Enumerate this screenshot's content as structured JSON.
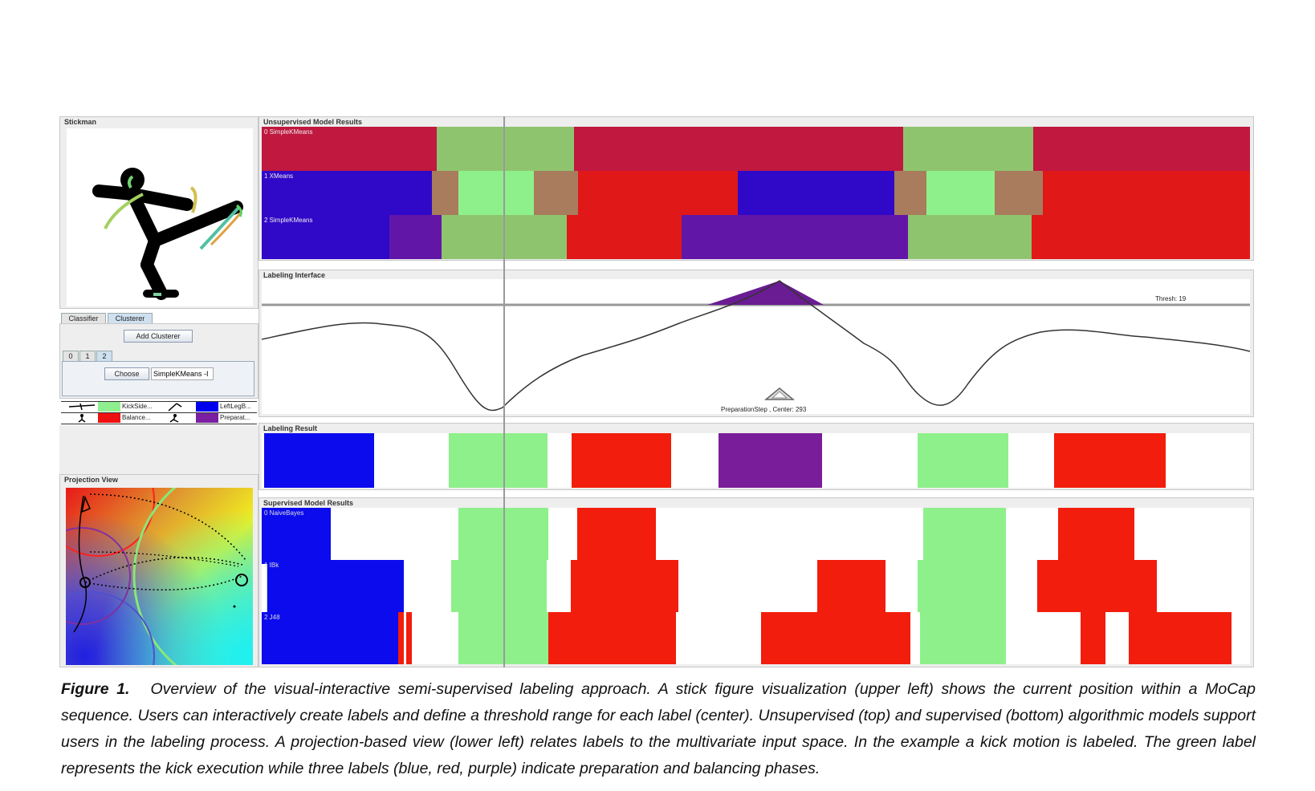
{
  "stickman": {
    "title": "Stickman"
  },
  "tabs": {
    "classifier": "Classifier",
    "clusterer": "Clusterer"
  },
  "add_clusterer": "Add Clusterer",
  "index_tabs": [
    "0",
    "1",
    "2"
  ],
  "choose_label": "Choose",
  "algorithm_field": "SimpleKMeans -I",
  "label_legend": [
    {
      "name": "KickSide...",
      "color": "#8fef8f"
    },
    {
      "name": "LeftLegB...",
      "color": "#0000ee"
    },
    {
      "name": "Balance...",
      "color": "#ee1111"
    },
    {
      "name": "Preparat...",
      "color": "#7a1fa0"
    }
  ],
  "projection": {
    "title": "Projection View"
  },
  "unsupervised": {
    "title": "Unsupervised Model Results",
    "rows": [
      "0 SimpleKMeans",
      "1 XMeans",
      "2 SimpleKMeans"
    ]
  },
  "labeling_interface": {
    "title": "Labeling Interface",
    "threshold_label": "Thresh: 19",
    "center_label": "PreparationStep  ,  Center: 293"
  },
  "labeling_result": {
    "title": "Labeling Result"
  },
  "supervised": {
    "title": "Supervised Model Results",
    "rows": [
      "0 NaiveBayes",
      "1 IBk",
      "2 J48"
    ]
  },
  "colors": {
    "crimson": "#c0183f",
    "lightgreen": "#8fc46f",
    "purple_blue": "#3008c8",
    "brown": "#a87c5c",
    "bright_green": "#8ef08a",
    "red": "#e01818",
    "violet": "#6216a8",
    "blue": "#0b0bee",
    "labred": "#f21d0c"
  },
  "caption": {
    "label": "Figure 1.",
    "text": "Overview of the visual-interactive semi-supervised labeling approach. A stick figure visualization (upper left) shows the current position within a MoCap sequence. Users can interactively create labels and define a threshold range for each label (center). Unsupervised (top) and supervised (bottom) algorithmic models support users in the labeling process. A projection-based view (lower left) relates labels to the multivariate input space. In the example a kick motion is labeled. The green label represents the kick execution while three labels (blue, red, purple) indicate preparation and balancing phases."
  }
}
